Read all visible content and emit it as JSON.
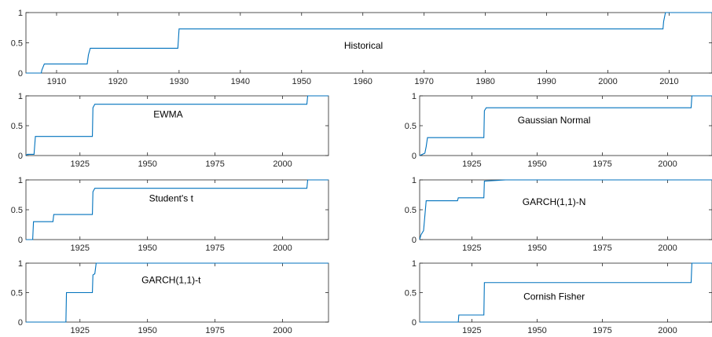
{
  "chart_data": [
    {
      "type": "line",
      "name": "historical",
      "annotation": "Historical",
      "xlim": [
        1905,
        2017
      ],
      "ylim": [
        0,
        1
      ],
      "xticks": [
        1910,
        1920,
        1930,
        1940,
        1950,
        1960,
        1970,
        1980,
        1990,
        2000,
        2010
      ],
      "yticks": [
        0,
        0.5,
        1
      ],
      "ytick_labels": [
        "0",
        "0.5",
        "1"
      ],
      "series": [
        {
          "x": [
            1905,
            1907.5,
            1907.6,
            1907.8,
            1908,
            1915,
            1915.2,
            1915.5,
            1929.8,
            1930,
            2009,
            2009.1,
            2009.4,
            2017
          ],
          "y": [
            0,
            0,
            0.05,
            0.1,
            0.15,
            0.15,
            0.3,
            0.41,
            0.41,
            0.73,
            0.73,
            0.85,
            1,
            1
          ]
        }
      ]
    },
    {
      "type": "line",
      "name": "ewma",
      "annotation": "EWMA",
      "xlim": [
        1905,
        2017
      ],
      "ylim": [
        0,
        1
      ],
      "xticks": [
        1925,
        1950,
        1975,
        2000
      ],
      "yticks": [
        0,
        0.5,
        1
      ],
      "ytick_labels": [
        "0",
        "0.5",
        "1"
      ],
      "series": [
        {
          "x": [
            1905,
            1905.5,
            1908,
            1908.5,
            1929.6,
            1929.8,
            1930.5,
            2009,
            2009.3,
            2017
          ],
          "y": [
            0,
            0.02,
            0.02,
            0.32,
            0.32,
            0.8,
            0.86,
            0.86,
            1,
            1
          ]
        }
      ]
    },
    {
      "type": "line",
      "name": "gaussian-normal",
      "annotation": "Gaussian Normal",
      "xlim": [
        1905,
        2017
      ],
      "ylim": [
        0,
        1
      ],
      "xticks": [
        1925,
        1950,
        1975,
        2000
      ],
      "yticks": [
        0,
        0.5,
        1
      ],
      "ytick_labels": [
        "0",
        "0.5",
        "1"
      ],
      "series": [
        {
          "x": [
            1905,
            1906,
            1907,
            1907.5,
            1908,
            1929.6,
            1929.8,
            1930.5,
            2009,
            2009.3,
            2017
          ],
          "y": [
            0,
            0.02,
            0.04,
            0.15,
            0.3,
            0.3,
            0.75,
            0.8,
            0.8,
            1,
            1
          ]
        }
      ]
    },
    {
      "type": "line",
      "name": "students-t",
      "annotation": "Student's t",
      "xlim": [
        1905,
        2017
      ],
      "ylim": [
        0,
        1
      ],
      "xticks": [
        1925,
        1950,
        1975,
        2000
      ],
      "yticks": [
        0,
        0.5,
        1
      ],
      "ytick_labels": [
        "0",
        "0.5",
        "1"
      ],
      "series": [
        {
          "x": [
            1905,
            1907.5,
            1907.8,
            1915,
            1915.3,
            1929.6,
            1929.8,
            1930.5,
            2009,
            2009.3,
            2017
          ],
          "y": [
            0,
            0,
            0.3,
            0.3,
            0.42,
            0.42,
            0.8,
            0.86,
            0.86,
            1,
            1
          ]
        }
      ]
    },
    {
      "type": "line",
      "name": "garch-11-n",
      "annotation": "GARCH(1,1)-N",
      "xlim": [
        1905,
        2017
      ],
      "ylim": [
        0,
        1
      ],
      "xticks": [
        1925,
        1950,
        1975,
        2000
      ],
      "yticks": [
        0,
        0.5,
        1
      ],
      "ytick_labels": [
        "0",
        "0.5",
        "1"
      ],
      "series": [
        {
          "x": [
            1905,
            1905.5,
            1906.5,
            1907.5,
            1919.5,
            1919.8,
            1929.6,
            1929.8,
            1938,
            2017
          ],
          "y": [
            0,
            0.08,
            0.15,
            0.65,
            0.65,
            0.7,
            0.7,
            0.98,
            1,
            1
          ]
        }
      ]
    },
    {
      "type": "line",
      "name": "garch-11-t",
      "annotation": "GARCH(1,1)-t",
      "xlim": [
        1905,
        2017
      ],
      "ylim": [
        0,
        1
      ],
      "xticks": [
        1925,
        1950,
        1975,
        2000
      ],
      "yticks": [
        0,
        0.5,
        1
      ],
      "ytick_labels": [
        "0",
        "0.5",
        "1"
      ],
      "series": [
        {
          "x": [
            1905,
            1919.8,
            1920,
            1929.6,
            1929.8,
            1930.5,
            1931,
            2017
          ],
          "y": [
            0,
            0,
            0.5,
            0.5,
            0.8,
            0.82,
            1,
            1
          ]
        }
      ]
    },
    {
      "type": "line",
      "name": "cornish-fisher",
      "annotation": "Cornish Fisher",
      "xlim": [
        1905,
        2017
      ],
      "ylim": [
        0,
        1
      ],
      "xticks": [
        1925,
        1950,
        1975,
        2000
      ],
      "yticks": [
        0,
        0.5,
        1
      ],
      "ytick_labels": [
        "0",
        "0.5",
        "1"
      ],
      "series": [
        {
          "x": [
            1905,
            1919.8,
            1920,
            1929.6,
            1929.8,
            2009,
            2009.3,
            2017
          ],
          "y": [
            0,
            0,
            0.12,
            0.12,
            0.67,
            0.67,
            1,
            1
          ]
        }
      ]
    }
  ]
}
